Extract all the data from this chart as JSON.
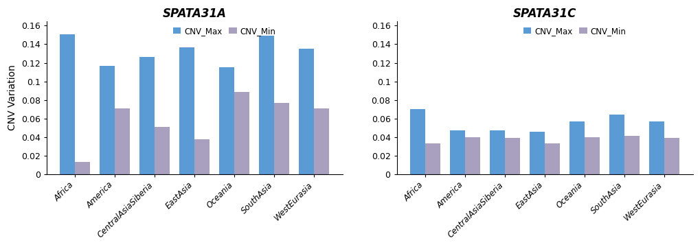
{
  "title_A": "SPATA31A",
  "title_C": "SPATA31C",
  "ylabel": "CNV Variation",
  "categories": [
    "Africa",
    "America",
    "CentralAsiaSiberia",
    "EastAsia",
    "Oceania",
    "SouthAsia",
    "WestEurasia"
  ],
  "A_max": [
    0.151,
    0.117,
    0.126,
    0.137,
    0.115,
    0.149,
    0.135
  ],
  "A_min": [
    0.013,
    0.071,
    0.051,
    0.038,
    0.089,
    0.077,
    0.071
  ],
  "C_max": [
    0.07,
    0.047,
    0.047,
    0.046,
    0.057,
    0.064,
    0.057
  ],
  "C_min": [
    0.033,
    0.04,
    0.039,
    0.033,
    0.04,
    0.041,
    0.039
  ],
  "ylim": [
    0,
    0.165
  ],
  "yticks": [
    0,
    0.02,
    0.04,
    0.06,
    0.08,
    0.1,
    0.12,
    0.14,
    0.16
  ],
  "ytick_labels": [
    "0",
    "0.02",
    "0.04",
    "0.06",
    "0.08",
    "0.1",
    "0.12",
    "0.14",
    "0.16"
  ],
  "color_max": "#5B9BD5",
  "color_min": "#A9A0C0",
  "bar_width": 0.38,
  "legend_labels": [
    "CNV_Max",
    "CNV_Min"
  ]
}
